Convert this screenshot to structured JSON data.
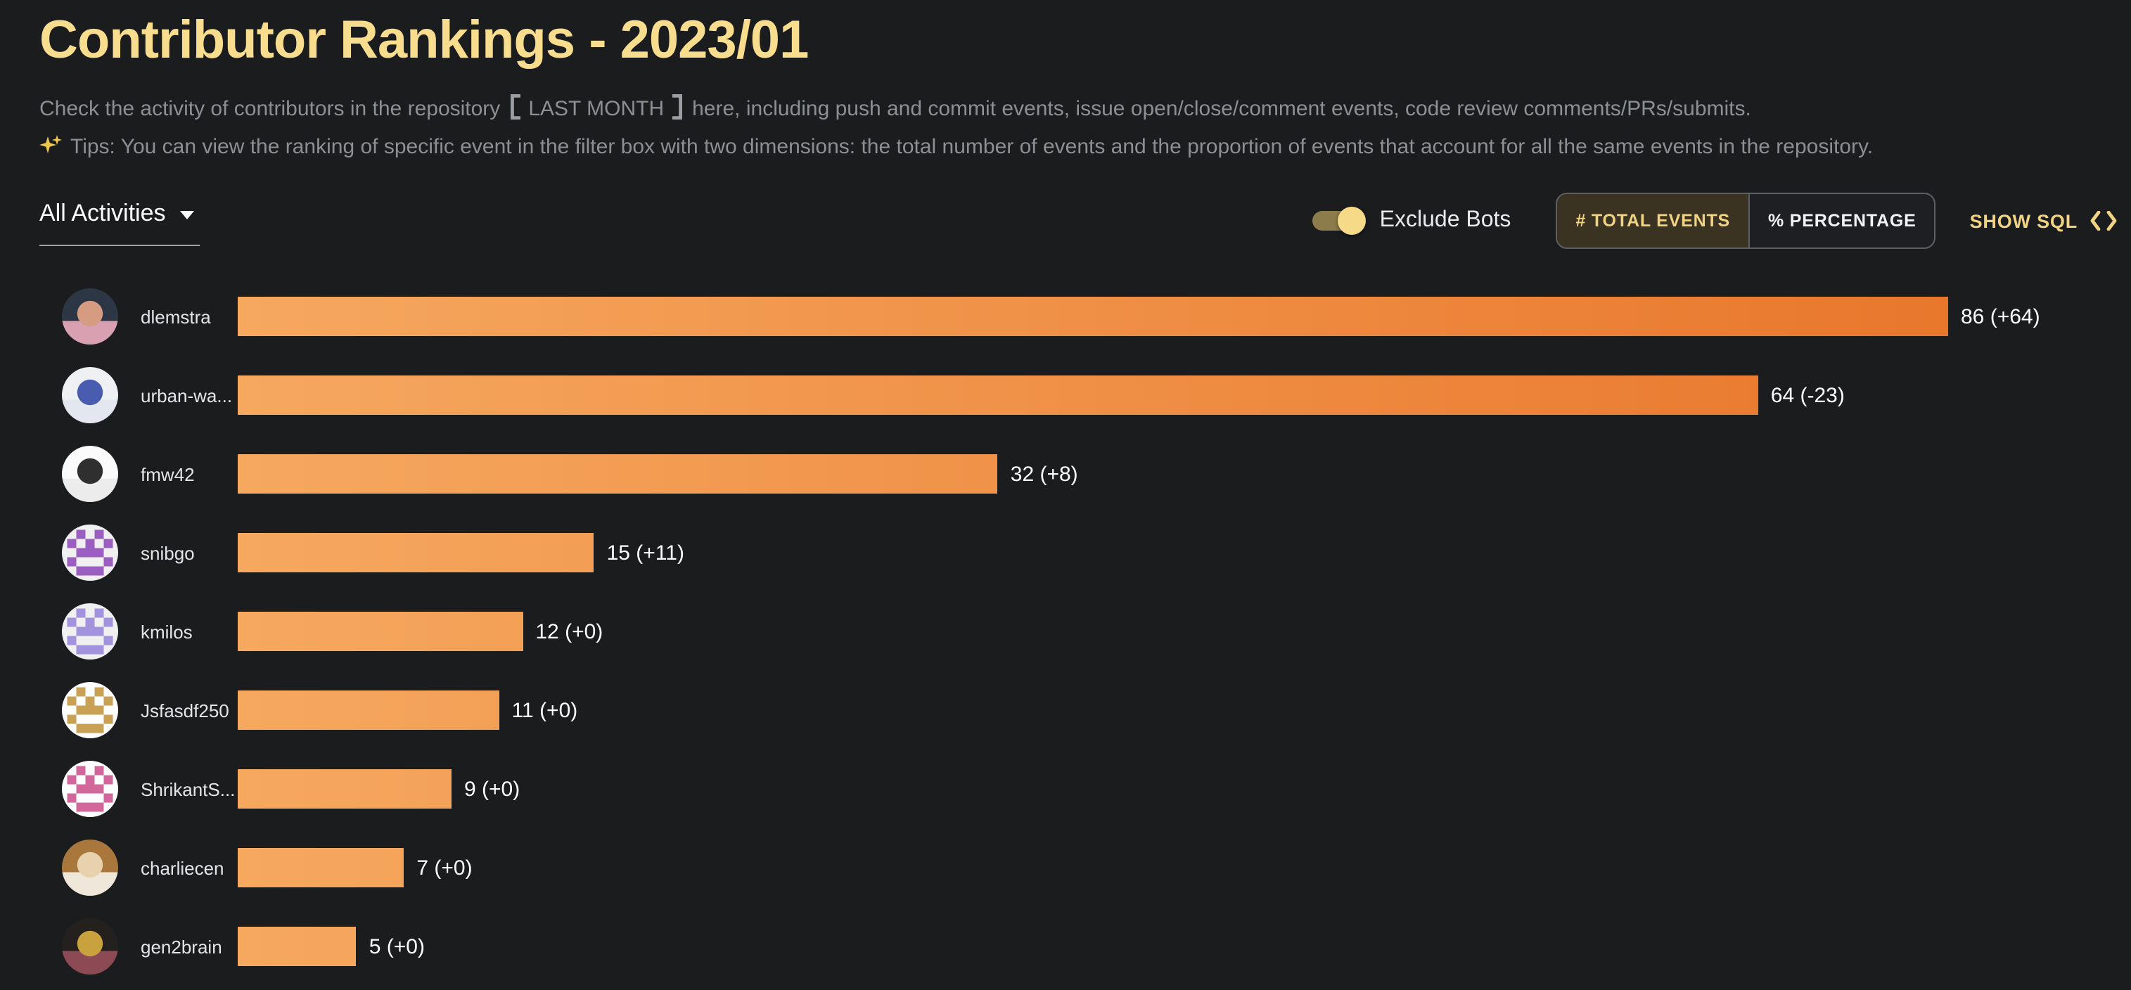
{
  "page": {
    "title": "Contributor Rankings - 2023/01",
    "description": {
      "before": "Check the activity of contributors in the repository",
      "highlight": "LAST MONTH",
      "after": "here, including push and commit events, issue open/close/comment events, code review comments/PRs/submits."
    },
    "tips": "Tips: You can view the ranking of specific event in the filter box with two dimensions: the total number of events and the proportion of events that account for all the same events in the repository."
  },
  "controls": {
    "activity_filter": {
      "value": "All Activities"
    },
    "exclude_bots": {
      "label": "Exclude Bots",
      "enabled": true
    },
    "metric_toggle": [
      {
        "label": "# TOTAL EVENTS",
        "selected": true
      },
      {
        "label": "% PERCENTAGE",
        "selected": false
      }
    ],
    "show_sql_label": "SHOW SQL"
  },
  "colors": {
    "background": "#1b1c1e",
    "title": "#f7dd8d",
    "body_text": "#8c8f93",
    "accent_yellow": "#f2d283",
    "selected_segment_bg": "#3a3322",
    "switch_track": "#8d7c4b",
    "switch_knob": "#f6da87",
    "bar_gradient_start": "#f6a85f",
    "bar_gradient_end": "#e8772c"
  },
  "chart_data": {
    "type": "bar",
    "orientation": "horizontal",
    "title": "Contributor Rankings - 2023/01",
    "xlabel": "",
    "ylabel": "",
    "xlim": [
      0,
      72
    ],
    "grid": false,
    "legend": false,
    "value_label_format": "value (signed_change)",
    "categories": [
      "dlemstra",
      "urban-wa...",
      "fmw42",
      "snibgo",
      "kmilos",
      "Jsfasdf250",
      "ShrikantS...",
      "charliecen",
      "gen2brain"
    ],
    "values": [
      86,
      64,
      32,
      15,
      12,
      11,
      9,
      7,
      5
    ],
    "changes": [
      64,
      -23,
      8,
      11,
      0,
      0,
      0,
      0,
      0
    ],
    "rows": [
      {
        "name": "dlemstra",
        "value": 86,
        "change": "+64",
        "label": "86 (+64)",
        "avatar": {
          "style": "photo",
          "colors": [
            "#2c3644",
            "#d69c82",
            "#d8a0b0"
          ]
        }
      },
      {
        "name": "urban-wa...",
        "value": 64,
        "change": "-23",
        "label": "64 (-23)",
        "avatar": {
          "style": "photo",
          "colors": [
            "#eef0f4",
            "#4a5cb0",
            "#e3e7ef"
          ]
        }
      },
      {
        "name": "fmw42",
        "value": 32,
        "change": "+8",
        "label": "32 (+8)",
        "avatar": {
          "style": "photo",
          "colors": [
            "#fbfbfb",
            "#2f2f2f",
            "#ececec"
          ]
        }
      },
      {
        "name": "snibgo",
        "value": 15,
        "change": "+11",
        "label": "15 (+11)",
        "avatar": {
          "style": "identicon",
          "bg": "#f0f0f0",
          "fg": "#9a5fc0"
        }
      },
      {
        "name": "kmilos",
        "value": 12,
        "change": "+0",
        "label": "12 (+0)",
        "avatar": {
          "style": "identicon",
          "bg": "#f0f0f0",
          "fg": "#a392dd"
        }
      },
      {
        "name": "Jsfasdf250",
        "value": 11,
        "change": "+0",
        "label": "11 (+0)",
        "avatar": {
          "style": "identicon",
          "bg": "#ffffff",
          "fg": "#c8a155"
        }
      },
      {
        "name": "ShrikantS...",
        "value": 9,
        "change": "+0",
        "label": "9 (+0)",
        "avatar": {
          "style": "identicon",
          "bg": "#ffffff",
          "fg": "#d2679b"
        }
      },
      {
        "name": "charliecen",
        "value": 7,
        "change": "+0",
        "label": "7 (+0)",
        "avatar": {
          "style": "photo",
          "colors": [
            "#a9763c",
            "#e8d2ae",
            "#efe8da"
          ]
        }
      },
      {
        "name": "gen2brain",
        "value": 5,
        "change": "+0",
        "label": "5 (+0)",
        "avatar": {
          "style": "photo",
          "colors": [
            "#23201d",
            "#c9a23d",
            "#8c4a55"
          ]
        }
      }
    ]
  }
}
